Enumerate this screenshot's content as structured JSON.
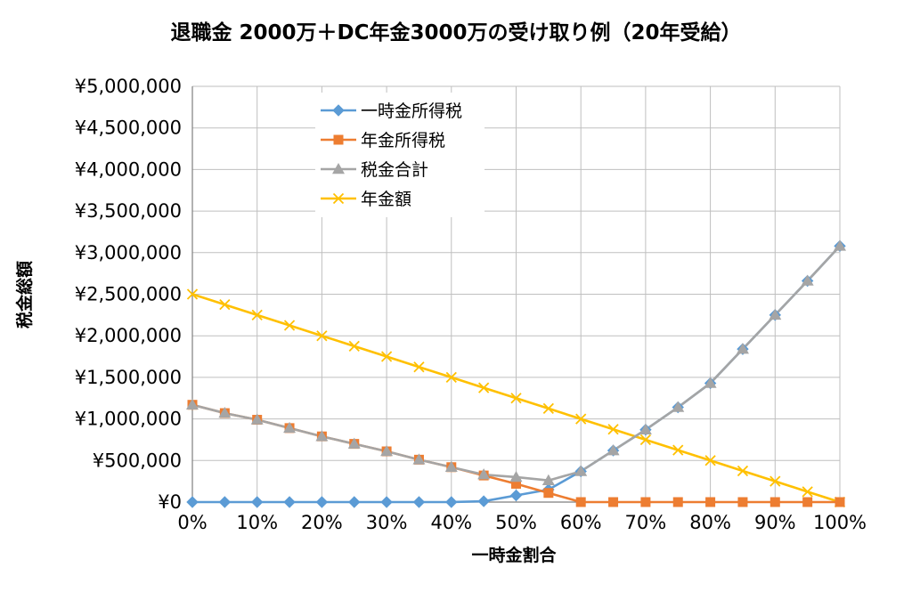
{
  "chart_data": {
    "type": "line",
    "title": "退職金 2000万＋DC年金3000万の受け取り例（20年受給）",
    "xlabel": "一時金割合",
    "ylabel": "税金総額",
    "x": [
      0,
      5,
      10,
      15,
      20,
      25,
      30,
      35,
      40,
      45,
      50,
      55,
      60,
      65,
      70,
      75,
      80,
      85,
      90,
      95,
      100
    ],
    "x_tick_labels": [
      "0%",
      "10%",
      "20%",
      "30%",
      "40%",
      "50%",
      "60%",
      "70%",
      "80%",
      "90%",
      "100%"
    ],
    "x_tick_values": [
      0,
      10,
      20,
      30,
      40,
      50,
      60,
      70,
      80,
      90,
      100
    ],
    "ylim": [
      0,
      5000000
    ],
    "y_tick_values": [
      0,
      500000,
      1000000,
      1500000,
      2000000,
      2500000,
      3000000,
      3500000,
      4000000,
      4500000,
      5000000
    ],
    "y_tick_labels": [
      "¥0",
      "¥500,000",
      "¥1,000,000",
      "¥1,500,000",
      "¥2,000,000",
      "¥2,500,000",
      "¥3,000,000",
      "¥3,500,000",
      "¥4,000,000",
      "¥4,500,000",
      "¥5,000,000"
    ],
    "grid": true,
    "legend_position": "top-center",
    "series": [
      {
        "name": "一時金所得税",
        "color": "#5b9bd5",
        "marker": "diamond",
        "values": [
          0,
          0,
          0,
          0,
          0,
          0,
          0,
          0,
          0,
          10000,
          80000,
          150000,
          370000,
          620000,
          870000,
          1140000,
          1430000,
          1840000,
          2250000,
          2660000,
          3080000
        ]
      },
      {
        "name": "年金所得税",
        "color": "#ed7d31",
        "marker": "square",
        "values": [
          1170000,
          1070000,
          990000,
          890000,
          790000,
          700000,
          610000,
          510000,
          420000,
          320000,
          220000,
          110000,
          0,
          0,
          0,
          0,
          0,
          0,
          0,
          0,
          0
        ]
      },
      {
        "name": "税金合計",
        "color": "#a5a5a5",
        "marker": "triangle",
        "values": [
          1170000,
          1070000,
          990000,
          890000,
          790000,
          700000,
          610000,
          510000,
          420000,
          330000,
          300000,
          260000,
          370000,
          620000,
          870000,
          1140000,
          1430000,
          1840000,
          2250000,
          2660000,
          3080000
        ]
      },
      {
        "name": "年金額",
        "color": "#ffc000",
        "marker": "x",
        "values": [
          2500000,
          2375000,
          2250000,
          2125000,
          2000000,
          1875000,
          1750000,
          1625000,
          1500000,
          1375000,
          1250000,
          1125000,
          1000000,
          875000,
          750000,
          625000,
          500000,
          375000,
          250000,
          125000,
          0
        ]
      }
    ]
  }
}
